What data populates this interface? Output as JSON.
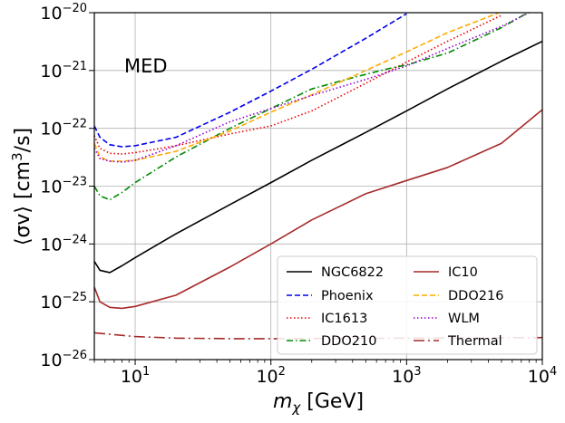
{
  "chart_data": {
    "type": "line",
    "title": "",
    "annotation": "MED",
    "xlabel": {
      "prefix": "m",
      "sub": "χ",
      "suffix": " [GeV]"
    },
    "ylabel": {
      "pre": "⟨σv⟩ [cm",
      "sup": "3",
      "post": "/s]"
    },
    "xscale": "log",
    "yscale": "log",
    "xlim": [
      5,
      10000
    ],
    "ylim": [
      1e-26,
      1e-20
    ],
    "grid": true,
    "legend_position": "bottom-right",
    "x_ticks": [
      {
        "value": 10,
        "base": "10",
        "exp": "1"
      },
      {
        "value": 100,
        "base": "10",
        "exp": "2"
      },
      {
        "value": 1000,
        "base": "10",
        "exp": "3"
      },
      {
        "value": 10000,
        "base": "10",
        "exp": "4"
      }
    ],
    "y_ticks": [
      {
        "value": 1e-26,
        "base": "10",
        "exp": "−26"
      },
      {
        "value": 1e-25,
        "base": "10",
        "exp": "−25"
      },
      {
        "value": 1e-24,
        "base": "10",
        "exp": "−24"
      },
      {
        "value": 1e-23,
        "base": "10",
        "exp": "−23"
      },
      {
        "value": 1e-22,
        "base": "10",
        "exp": "−22"
      },
      {
        "value": 1e-21,
        "base": "10",
        "exp": "−21"
      },
      {
        "value": 1e-20,
        "base": "10",
        "exp": "−20"
      }
    ],
    "series": [
      {
        "name": "NGC6822",
        "color": "#000000",
        "dash": "solid",
        "points": [
          [
            5,
            5e-25
          ],
          [
            5.5,
            3.5e-25
          ],
          [
            6.5,
            3.2e-25
          ],
          [
            8,
            4.2e-25
          ],
          [
            10,
            5.8e-25
          ],
          [
            20,
            1.5e-24
          ],
          [
            50,
            4.8e-24
          ],
          [
            100,
            1.15e-23
          ],
          [
            200,
            2.8e-23
          ],
          [
            500,
            8.5e-23
          ],
          [
            1000,
            2e-22
          ],
          [
            2000,
            4.8e-22
          ],
          [
            5000,
            1.45e-21
          ],
          [
            10000,
            3.2e-21
          ]
        ]
      },
      {
        "name": "Phoenix",
        "color": "#0000ee",
        "dash": "dashed",
        "points": [
          [
            5,
            1.1e-22
          ],
          [
            5.5,
            7e-23
          ],
          [
            6.5,
            5.2e-23
          ],
          [
            8,
            4.8e-23
          ],
          [
            10,
            5e-23
          ],
          [
            20,
            7e-23
          ],
          [
            50,
            1.9e-22
          ],
          [
            100,
            4.4e-22
          ],
          [
            200,
            1.05e-21
          ],
          [
            500,
            3.6e-21
          ],
          [
            1000,
            9.6e-21
          ]
        ]
      },
      {
        "name": "IC1613",
        "color": "#ee0000",
        "dash": "dotted",
        "points": [
          [
            5,
            7.5e-23
          ],
          [
            5.5,
            4.5e-23
          ],
          [
            6.5,
            3.7e-23
          ],
          [
            8,
            3.6e-23
          ],
          [
            10,
            3.8e-23
          ],
          [
            20,
            5e-23
          ],
          [
            50,
            8e-23
          ],
          [
            100,
            1.1e-22
          ],
          [
            200,
            2e-22
          ],
          [
            500,
            6e-22
          ],
          [
            1000,
            1.4e-21
          ],
          [
            2000,
            3.2e-21
          ],
          [
            5000,
            9e-21
          ]
        ]
      },
      {
        "name": "DDO210",
        "color": "#008800",
        "dash": "dashdot",
        "points": [
          [
            5,
            1e-23
          ],
          [
            5.5,
            6.8e-24
          ],
          [
            6.5,
            5.8e-24
          ],
          [
            8,
            7.8e-24
          ],
          [
            10,
            1.15e-23
          ],
          [
            20,
            3.2e-23
          ],
          [
            50,
            1e-22
          ],
          [
            100,
            2.2e-22
          ],
          [
            200,
            4.8e-22
          ],
          [
            400,
            7.5e-22
          ],
          [
            700,
            1.05e-21
          ],
          [
            1000,
            1.25e-21
          ],
          [
            2000,
            2e-21
          ],
          [
            5000,
            5.5e-21
          ],
          [
            7800,
            1e-20
          ]
        ]
      },
      {
        "name": "IC10",
        "color": "#a52a2a",
        "dash": "solid",
        "points": [
          [
            5,
            1.8e-25
          ],
          [
            5.5,
            1e-25
          ],
          [
            6.5,
            8e-26
          ],
          [
            8,
            7.7e-26
          ],
          [
            10,
            8.3e-26
          ],
          [
            20,
            1.3e-25
          ],
          [
            50,
            4e-25
          ],
          [
            100,
            1e-24
          ],
          [
            200,
            2.6e-24
          ],
          [
            500,
            7.4e-24
          ],
          [
            1000,
            1.25e-23
          ],
          [
            2000,
            2.1e-23
          ],
          [
            5000,
            5.5e-23
          ],
          [
            10000,
            2.1e-22
          ]
        ]
      },
      {
        "name": "DDO216",
        "color": "#ffaa00",
        "dash": "dashed",
        "points": [
          [
            5,
            5.5e-23
          ],
          [
            5.5,
            3.2e-23
          ],
          [
            6.5,
            2.7e-23
          ],
          [
            8,
            2.7e-23
          ],
          [
            10,
            2.8e-23
          ],
          [
            20,
            4e-23
          ],
          [
            50,
            9e-23
          ],
          [
            100,
            1.9e-22
          ],
          [
            200,
            3.8e-22
          ],
          [
            500,
            1e-21
          ],
          [
            1000,
            2.1e-21
          ],
          [
            2000,
            4.5e-21
          ],
          [
            4800,
            1e-20
          ]
        ]
      },
      {
        "name": "WLM",
        "color": "#9400d3",
        "dash": "dotted",
        "points": [
          [
            5,
            4.5e-23
          ],
          [
            5.5,
            3e-23
          ],
          [
            6.5,
            2.7e-23
          ],
          [
            8,
            2.6e-23
          ],
          [
            10,
            2.8e-23
          ],
          [
            20,
            5e-23
          ],
          [
            50,
            1.3e-22
          ],
          [
            100,
            2.2e-22
          ],
          [
            200,
            3.7e-22
          ],
          [
            500,
            7e-22
          ],
          [
            1000,
            1.2e-21
          ],
          [
            2000,
            2.4e-21
          ],
          [
            5000,
            5.8e-21
          ],
          [
            8000,
            1e-20
          ]
        ]
      },
      {
        "name": "Thermal",
        "color": "#a52a2a",
        "dash": "longdashdot",
        "points": [
          [
            5,
            2.9e-26
          ],
          [
            10,
            2.5e-26
          ],
          [
            20,
            2.35e-26
          ],
          [
            50,
            2.3e-26
          ],
          [
            100,
            2.3e-26
          ],
          [
            1000,
            2.35e-26
          ],
          [
            10000,
            2.4e-26
          ]
        ]
      }
    ]
  }
}
